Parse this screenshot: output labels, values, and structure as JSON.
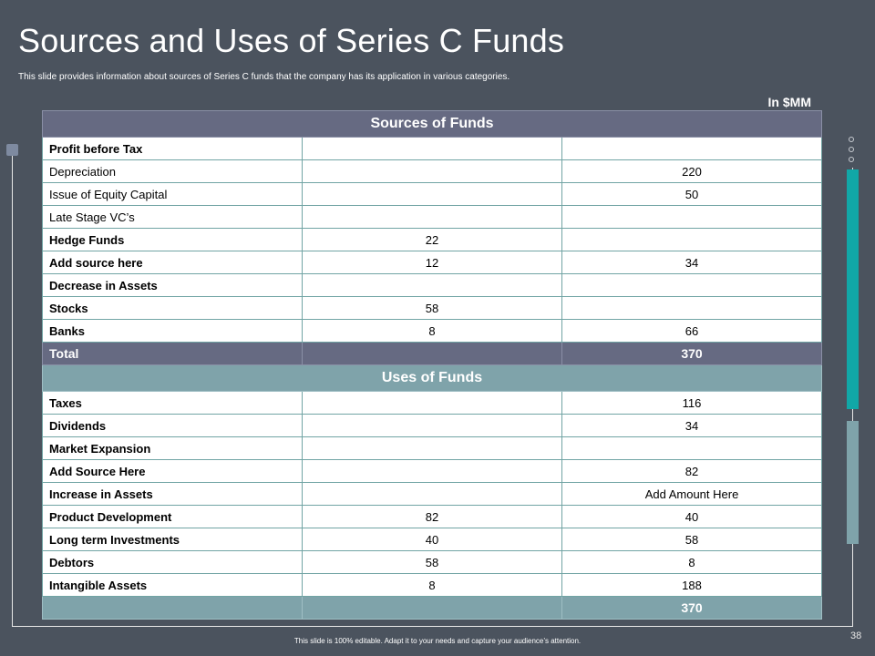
{
  "slide": {
    "title": "Sources and Uses of Series C Funds",
    "subtitle": "This slide provides information about sources of Series C funds that the company has its application in various categories.",
    "unit_label": "In $MM",
    "page_number": "38",
    "footer": "This slide is 100% editable. Adapt it to your needs and capture your audience’s attention."
  },
  "colors": {
    "background": "#4b535e",
    "sources_header": "#666a82",
    "uses_header": "#7fa3aa",
    "accent_teal": "#11a7a7",
    "grid_line": "#71a4a4"
  },
  "sources": {
    "header": "Sources of Funds",
    "rows": [
      {
        "label": "Profit before Tax",
        "a": "",
        "b": "",
        "bold": true
      },
      {
        "label": "Depreciation",
        "a": "",
        "b": "220",
        "bold": false
      },
      {
        "label": "Issue of Equity Capital",
        "a": "",
        "b": "50",
        "bold": false
      },
      {
        "label": "Late Stage VC’s",
        "a": "",
        "b": "",
        "bold": false
      },
      {
        "label": "Hedge Funds",
        "a": "22",
        "b": "",
        "bold": true
      },
      {
        "label": "Add  source here",
        "a": "12",
        "b": "34",
        "bold": true
      },
      {
        "label": "Decrease in Assets",
        "a": "",
        "b": "",
        "bold": true
      },
      {
        "label": "Stocks",
        "a": "58",
        "b": "",
        "bold": true
      },
      {
        "label": "Banks",
        "a": "8",
        "b": "66",
        "bold": true
      }
    ],
    "total": {
      "label": "Total",
      "a": "",
      "b": "370"
    }
  },
  "uses": {
    "header": "Uses of Funds",
    "rows": [
      {
        "label": "Taxes",
        "a": "",
        "b": "116",
        "bold": true
      },
      {
        "label": "Dividends",
        "a": "",
        "b": "34",
        "bold": true
      },
      {
        "label": "Market Expansion",
        "a": "",
        "b": "",
        "bold": true
      },
      {
        "label": "Add  Source Here",
        "a": "",
        "b": "82",
        "bold": true
      },
      {
        "label": "Increase in Assets",
        "a": "",
        "b": "Add Amount Here",
        "bold": true
      },
      {
        "label": "Product Development",
        "a": "82",
        "b": "40",
        "bold": true
      },
      {
        "label": "Long term Investments",
        "a": "40",
        "b": "58",
        "bold": true
      },
      {
        "label": "Debtors",
        "a": "58",
        "b": "8",
        "bold": true
      },
      {
        "label": "Intangible Assets",
        "a": "8",
        "b": "188",
        "bold": true
      }
    ],
    "total": {
      "label": "",
      "a": "",
      "b": "370"
    }
  }
}
